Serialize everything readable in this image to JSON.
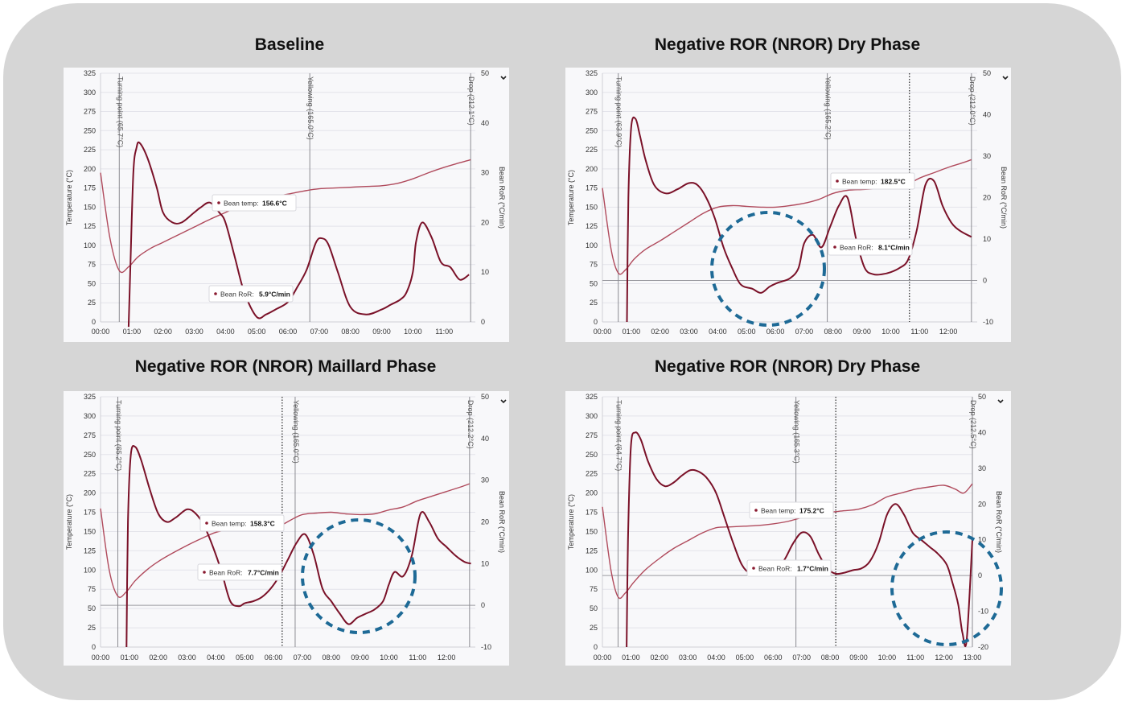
{
  "charts": [
    {
      "title": "Baseline",
      "chart_data": {
        "type": "line",
        "x_unit": "min",
        "xlim": [
          0,
          12
        ],
        "ylim": [
          0,
          325
        ],
        "y2lim": [
          0,
          50
        ],
        "ylabel": "Temperature (°C)",
        "y2label": "Bean RoR (°C/min)",
        "x_ticks": [
          "00:00",
          "01:00",
          "02:00",
          "03:00",
          "04:00",
          "05:00",
          "06:00",
          "07:00",
          "08:00",
          "09:00",
          "10:00",
          "11:00"
        ],
        "y_ticks": [
          "0",
          "25",
          "50",
          "75",
          "100",
          "125",
          "150",
          "175",
          "200",
          "225",
          "250",
          "275",
          "300",
          "325"
        ],
        "y2_ticks": [
          "0",
          "10",
          "20",
          "30",
          "40",
          "50"
        ],
        "events": [
          {
            "label": "Turning point (65.7°C)",
            "x": 0.6
          },
          {
            "label": "Yellowing (165.0°C)",
            "x": 6.7
          },
          {
            "label": "Drop (212.1°C)",
            "x": 11.85
          }
        ],
        "callouts": [
          {
            "label": "Bean temp:",
            "value": "156.6°C"
          },
          {
            "label": "Bean RoR:",
            "value": "5.9°C/min"
          }
        ],
        "series": [
          {
            "name": "Bean temp",
            "color": "#b04a5c",
            "axis": "left",
            "x": [
              0,
              0.3,
              0.6,
              0.9,
              1.2,
              1.6,
              2,
              2.5,
              3,
              3.5,
              4,
              4.5,
              5,
              5.5,
              6,
              6.5,
              7,
              7.5,
              8,
              8.5,
              9,
              9.5,
              10,
              10.5,
              11,
              11.5,
              11.85
            ],
            "y": [
              195,
              110,
              67,
              72,
              85,
              96,
              104,
              114,
              124,
              134,
              143,
              152,
              157,
              163,
              167,
              171,
              174,
              175,
              176,
              177,
              178,
              181,
              187,
              195,
              202,
              208,
              212
            ]
          },
          {
            "name": "Bean RoR",
            "color": "#7a1128",
            "axis": "right",
            "x": [
              0.9,
              0.95,
              1.05,
              1.15,
              1.25,
              1.5,
              1.8,
              2,
              2.3,
              2.6,
              3,
              3.2,
              3.5,
              3.8,
              4,
              4.3,
              4.6,
              5,
              5.3,
              5.6,
              6,
              6.3,
              6.6,
              6.9,
              7.1,
              7.3,
              7.6,
              8,
              8.5,
              9,
              9.3,
              9.6,
              9.8,
              10,
              10.1,
              10.3,
              10.6,
              10.9,
              11.2,
              11.5,
              11.8
            ],
            "y": [
              -1,
              10,
              30,
              35,
              36,
              33,
              27,
              22,
              20,
              20,
              22,
              23,
              24,
              22,
              20,
              13,
              6,
              1,
              1.5,
              2.5,
              4,
              7,
              10.5,
              16,
              16.8,
              15.5,
              10,
              3,
              1.5,
              2.5,
              3.5,
              4.5,
              6,
              10,
              16,
              20,
              17,
              12,
              11,
              8.5,
              9.5
            ]
          }
        ]
      }
    },
    {
      "title": "Negative ROR (NROR) Dry Phase",
      "chart_data": {
        "type": "line",
        "x_unit": "min",
        "xlim": [
          0,
          13
        ],
        "ylim": [
          0,
          325
        ],
        "y2lim": [
          -10,
          50
        ],
        "ylabel": "Temperature (°C)",
        "y2label": "Bean RoR (°C/min)",
        "x_ticks": [
          "00:00",
          "01:00",
          "02:00",
          "03:00",
          "04:00",
          "05:00",
          "06:00",
          "07:00",
          "08:00",
          "09:00",
          "10:00",
          "11:00",
          "12:00"
        ],
        "y_ticks": [
          "0",
          "25",
          "50",
          "75",
          "100",
          "125",
          "150",
          "175",
          "200",
          "225",
          "250",
          "275",
          "300",
          "325"
        ],
        "y2_ticks": [
          "-10",
          "0",
          "10",
          "20",
          "30",
          "40",
          "50"
        ],
        "events": [
          {
            "label": "Turning point (63.9°C)",
            "x": 0.55
          },
          {
            "label": "Yellowing (165.2°C)",
            "x": 7.8
          },
          {
            "label": "Drop (212.0°C)",
            "x": 12.8
          }
        ],
        "cursor_x": 10.65,
        "callouts": [
          {
            "label": "Bean temp:",
            "value": "182.5°C"
          },
          {
            "label": "Bean RoR:",
            "value": "8.1°C/min"
          }
        ],
        "series": [
          {
            "name": "Bean temp",
            "color": "#b04a5c",
            "axis": "left",
            "x": [
              0,
              0.3,
              0.55,
              0.8,
              1.1,
              1.5,
              2,
              2.5,
              3,
              3.5,
              4,
              4.5,
              5,
              5.5,
              6,
              6.5,
              7,
              7.5,
              8,
              8.5,
              9,
              9.5,
              10,
              10.5,
              11,
              11.5,
              12,
              12.5,
              12.8
            ],
            "y": [
              175,
              95,
              64,
              68,
              82,
              95,
              106,
              118,
              130,
              142,
              150,
              152,
              151,
              150,
              150,
              152,
              155,
              160,
              168,
              172,
              173,
              174,
              175,
              178,
              188,
              195,
              202,
              208,
              212
            ]
          },
          {
            "name": "Bean RoR",
            "color": "#7a1128",
            "axis": "right",
            "x": [
              0.85,
              0.9,
              1,
              1.15,
              1.3,
              1.5,
              1.8,
              2.2,
              2.6,
              3,
              3.3,
              3.6,
              3.9,
              4.2,
              4.5,
              4.8,
              5.2,
              5.5,
              5.8,
              6.1,
              6.5,
              6.8,
              7,
              7.3,
              7.6,
              7.9,
              8.2,
              8.5,
              8.8,
              9.1,
              9.4,
              9.7,
              10,
              10.3,
              10.6,
              10.9,
              11.2,
              11.5,
              11.8,
              12.1,
              12.4,
              12.8
            ],
            "y": [
              -10,
              20,
              37,
              39,
              35,
              29,
              23,
              21,
              22,
              23.5,
              23,
              20,
              15,
              8,
              3,
              -1,
              -2,
              -3,
              -1.5,
              -0.5,
              0.5,
              3,
              9,
              11,
              8,
              13,
              18,
              20,
              10,
              3,
              1.5,
              1.5,
              2,
              3,
              5,
              12,
              23,
              24,
              18,
              14,
              12,
              10.5
            ]
          }
        ]
      }
    },
    {
      "title": "Negative ROR (NROR) Maillard Phase",
      "chart_data": {
        "type": "line",
        "x_unit": "min",
        "xlim": [
          0,
          13
        ],
        "ylim": [
          0,
          325
        ],
        "y2lim": [
          -10,
          50
        ],
        "ylabel": "Temperature (°C)",
        "y2label": "Bean RoR (°C/min)",
        "x_ticks": [
          "00:00",
          "01:00",
          "02:00",
          "03:00",
          "04:00",
          "05:00",
          "06:00",
          "07:00",
          "08:00",
          "09:00",
          "10:00",
          "11:00",
          "12:00"
        ],
        "y_ticks": [
          "0",
          "25",
          "50",
          "75",
          "100",
          "125",
          "150",
          "175",
          "200",
          "225",
          "250",
          "275",
          "300",
          "325"
        ],
        "y2_ticks": [
          "-10",
          "0",
          "10",
          "20",
          "30",
          "40",
          "50"
        ],
        "events": [
          {
            "label": "Turning point (65.2°C)",
            "x": 0.6
          },
          {
            "label": "Yellowing (165.0°C)",
            "x": 6.75
          },
          {
            "label": "Drop (212.2°C)",
            "x": 12.8
          }
        ],
        "cursor_x": 6.3,
        "callouts": [
          {
            "label": "Bean temp:",
            "value": "158.3°C"
          },
          {
            "label": "Bean RoR:",
            "value": "7.7°C/min"
          }
        ],
        "series": [
          {
            "name": "Bean temp",
            "color": "#b04a5c",
            "axis": "left",
            "x": [
              0,
              0.3,
              0.6,
              0.9,
              1.2,
              1.6,
              2,
              2.5,
              3,
              3.5,
              4,
              4.5,
              5,
              5.5,
              6,
              6.3,
              6.6,
              7,
              7.5,
              8,
              8.5,
              9,
              9.5,
              10,
              10.5,
              11,
              11.5,
              12,
              12.5,
              12.8
            ],
            "y": [
              180,
              100,
              66,
              72,
              86,
              100,
              111,
              122,
              132,
              141,
              149,
              153,
              156,
              157,
              158,
              159,
              165,
              172,
              174,
              175,
              173,
              172,
              173,
              178,
              182,
              190,
              196,
              202,
              208,
              212
            ]
          },
          {
            "name": "Bean RoR",
            "color": "#7a1128",
            "axis": "right",
            "x": [
              0.9,
              0.95,
              1.05,
              1.2,
              1.4,
              1.7,
              2,
              2.3,
              2.6,
              3,
              3.3,
              3.6,
              3.9,
              4.2,
              4.5,
              4.8,
              5,
              5.3,
              5.6,
              5.9,
              6.2,
              6.5,
              6.8,
              7.1,
              7.4,
              7.7,
              8,
              8.3,
              8.6,
              8.9,
              9.2,
              9.5,
              9.8,
              10,
              10.2,
              10.5,
              10.8,
              11.1,
              11.4,
              11.7,
              12,
              12.3,
              12.6,
              12.85
            ],
            "y": [
              -10,
              20,
              36,
              38,
              35,
              28,
              22,
              20,
              21,
              23,
              22,
              19,
              14,
              8,
              1,
              -0.2,
              0.5,
              1,
              2,
              4,
              7,
              11,
              15,
              17,
              12,
              4,
              1,
              -2,
              -4.5,
              -3,
              -2,
              -1,
              1,
              5,
              8,
              7,
              12,
              22,
              20,
              16,
              14,
              12,
              10.5,
              10
            ]
          }
        ]
      }
    },
    {
      "title": "Negative ROR (NROR) Dry Phase",
      "chart_data": {
        "type": "line",
        "x_unit": "min",
        "xlim": [
          0,
          13
        ],
        "ylim": [
          0,
          325
        ],
        "y2lim": [
          -20,
          50
        ],
        "ylabel": "Temperature (°C)",
        "y2label": "Bean RoR (°C/min)",
        "x_ticks": [
          "00:00",
          "01:00",
          "02:00",
          "03:00",
          "04:00",
          "05:00",
          "06:00",
          "07:00",
          "08:00",
          "09:00",
          "10:00",
          "11:00",
          "12:00",
          "13:00"
        ],
        "y_ticks": [
          "0",
          "25",
          "50",
          "75",
          "100",
          "125",
          "150",
          "175",
          "200",
          "225",
          "250",
          "275",
          "300",
          "325"
        ],
        "y2_ticks": [
          "-20",
          "-10",
          "0",
          "10",
          "20",
          "30",
          "40",
          "50"
        ],
        "events": [
          {
            "label": "Turning point (64.7°C)",
            "x": 0.55
          },
          {
            "label": "Yellowing (165.3°C)",
            "x": 6.8
          },
          {
            "label": "Drop (212.5°C)",
            "x": 13.0
          }
        ],
        "cursor_x": 8.2,
        "callouts": [
          {
            "label": "Bean temp:",
            "value": "175.2°C"
          },
          {
            "label": "Bean RoR:",
            "value": "1.7°C/min"
          }
        ],
        "series": [
          {
            "name": "Bean temp",
            "color": "#b04a5c",
            "axis": "left",
            "x": [
              0,
              0.3,
              0.55,
              0.8,
              1.1,
              1.5,
              2,
              2.5,
              3,
              3.5,
              4,
              4.5,
              5,
              5.5,
              6,
              6.5,
              7,
              7.5,
              8,
              8.5,
              9,
              9.5,
              10,
              10.5,
              11,
              11.5,
              12,
              12.4,
              12.7,
              13
            ],
            "y": [
              182,
              100,
              65,
              70,
              84,
              100,
              115,
              128,
              138,
              148,
              155,
              156,
              157,
              158,
              160,
              163,
              168,
              172,
              175,
              177,
              179,
              185,
              195,
              200,
              205,
              208,
              210,
              205,
              200,
              212
            ]
          },
          {
            "name": "Bean RoR",
            "color": "#7a1128",
            "axis": "right",
            "x": [
              0.85,
              0.9,
              1,
              1.15,
              1.35,
              1.6,
              1.9,
              2.2,
              2.5,
              2.8,
              3.1,
              3.4,
              3.7,
              4,
              4.3,
              4.6,
              4.9,
              5.2,
              5.5,
              5.8,
              6.1,
              6.4,
              6.7,
              7,
              7.3,
              7.6,
              7.9,
              8.2,
              8.5,
              8.8,
              9.1,
              9.4,
              9.7,
              10,
              10.3,
              10.6,
              10.9,
              11.2,
              11.5,
              11.8,
              12.1,
              12.3,
              12.5,
              12.65,
              12.8,
              13
            ],
            "y": [
              -20,
              10,
              36,
              40,
              38,
              32,
              27,
              25,
              26,
              28,
              29.5,
              29,
              27,
              23,
              16,
              9,
              3,
              0.5,
              0.5,
              1,
              2,
              4.5,
              9,
              12,
              11,
              6,
              2,
              0.5,
              0.8,
              1.5,
              2,
              4,
              9,
              17,
              20,
              17,
              12,
              10,
              8,
              6,
              3,
              -2,
              -8,
              -16,
              -18,
              10
            ]
          }
        ]
      }
    }
  ]
}
